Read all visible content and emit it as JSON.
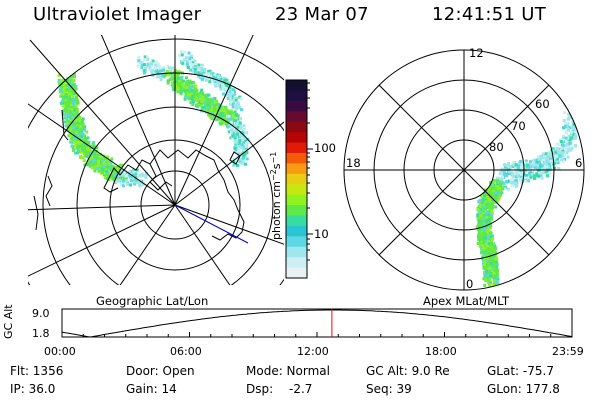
{
  "header": {
    "title": "Ultraviolet Imager",
    "date": "23 Mar 07",
    "time": "12:41:51 UT"
  },
  "left_panel": {
    "label": "Geographic Lat/Lon"
  },
  "right_panel": {
    "label": "Apex MLat/MLT",
    "mlt_labels": [
      "12",
      "18",
      "6",
      "0"
    ],
    "lat_labels": [
      "60",
      "70",
      "80"
    ]
  },
  "colorbar": {
    "label": "photon cm^-2 s^-1",
    "ticks": [
      "100",
      "10"
    ],
    "colors": [
      "#101030",
      "#1d1040",
      "#3a0a40",
      "#650a30",
      "#8a0a10",
      "#b50505",
      "#e01b0a",
      "#f55a0a",
      "#f99a12",
      "#e8cd14",
      "#c6e712",
      "#8ef320",
      "#5ee84a",
      "#36dca0",
      "#2ac5d4",
      "#5bd8e4",
      "#9fe6ee",
      "#cdeef2",
      "#e8f2f5"
    ]
  },
  "timeline": {
    "ylabel": "GC Alt",
    "y_ticks": [
      "9.0",
      "1.8"
    ],
    "x_ticks": [
      "00:00",
      "06:00",
      "12:00",
      "18:00",
      "23:59"
    ],
    "current_time_fraction": 0.5292,
    "marker_color": "#ff0000"
  },
  "info": {
    "flt": "Flt: 1356",
    "ip": "IP: 36.0",
    "door": "Door: Open",
    "gain": "Gain: 14",
    "mode": "Mode: Normal",
    "dsp_label": "Dsp:",
    "dsp_value": "-2.7",
    "gc_alt": "GC Alt: 9.0 Re",
    "seq": "Seq: 39",
    "glat": "GLat: -75.7",
    "glon": "GLon: 177.8"
  }
}
